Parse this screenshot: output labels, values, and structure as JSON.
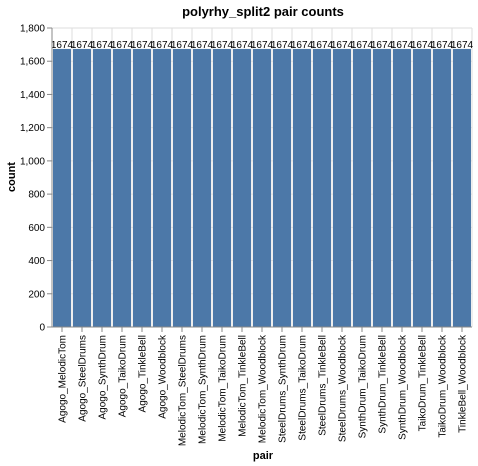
{
  "chart_data": {
    "type": "bar",
    "title": "polyrhy_split2 pair counts",
    "xlabel": "pair",
    "ylabel": "count",
    "ylim": [
      0,
      1800
    ],
    "yticks": [
      0,
      200,
      400,
      600,
      800,
      1000,
      1200,
      1400,
      1600,
      1800
    ],
    "ytick_labels": [
      "0",
      "200",
      "400",
      "600",
      "800",
      "1,000",
      "1,200",
      "1,400",
      "1,600",
      "1,800"
    ],
    "grid": true,
    "bar_color": "#4c78a8",
    "categories": [
      "Agogo_MelodicTom",
      "Agogo_SteelDrums",
      "Agogo_SynthDrum",
      "Agogo_TaikoDrum",
      "Agogo_TinkleBell",
      "Agogo_Woodblock",
      "MelodicTom_SteelDrums",
      "MelodicTom_SynthDrum",
      "MelodicTom_TaikoDrum",
      "MelodicTom_TinkleBell",
      "MelodicTom_Woodblock",
      "SteelDrums_SynthDrum",
      "SteelDrums_TaikoDrum",
      "SteelDrums_TinkleBell",
      "SteelDrums_Woodblock",
      "SynthDrum_TaikoDrum",
      "SynthDrum_TinkleBell",
      "SynthDrum_Woodblock",
      "TaikoDrum_TinkleBell",
      "TaikoDrum_Woodblock",
      "TinkleBell_Woodblock"
    ],
    "values": [
      1674,
      1674,
      1674,
      1674,
      1674,
      1674,
      1674,
      1674,
      1674,
      1674,
      1674,
      1674,
      1674,
      1674,
      1674,
      1674,
      1674,
      1674,
      1674,
      1674,
      1674
    ]
  }
}
